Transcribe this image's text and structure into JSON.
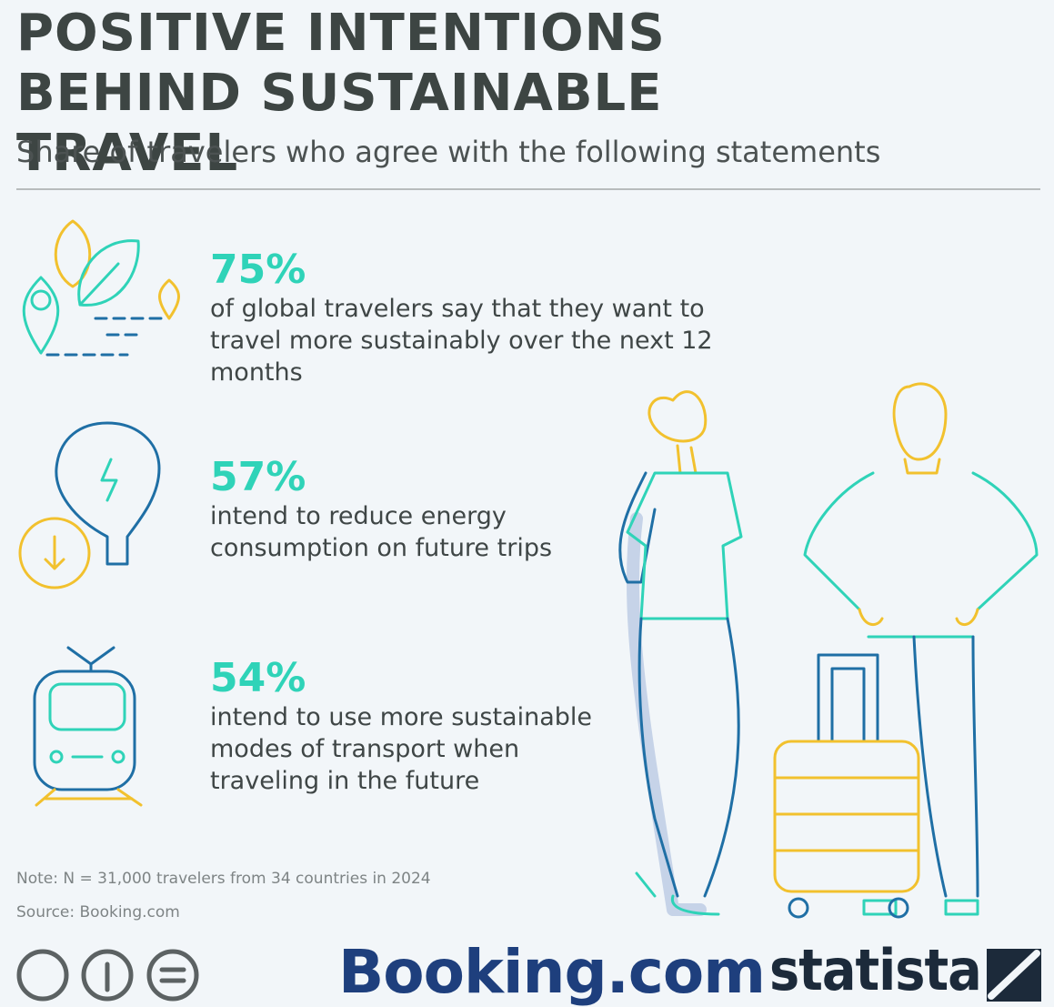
{
  "header": {
    "title": "POSITIVE INTENTIONS BEHIND SUSTAINABLE TRAVEL",
    "subtitle": "Share of travelers who agree with the following statements"
  },
  "items": [
    {
      "value": "75%",
      "text": "of global travelers say that they want to travel more sustainably over the next 12 months"
    },
    {
      "value": "57%",
      "text": "intend to reduce energy consumption on future trips"
    },
    {
      "value": "54%",
      "text": "intend to use more sustainable modes of transport when traveling in the future"
    }
  ],
  "footer": {
    "note": "Note: N = 31,000 travelers from 34 countries in 2024",
    "source": "Source: Booking.com",
    "logos": [
      "Booking.com",
      "statista"
    ]
  }
}
